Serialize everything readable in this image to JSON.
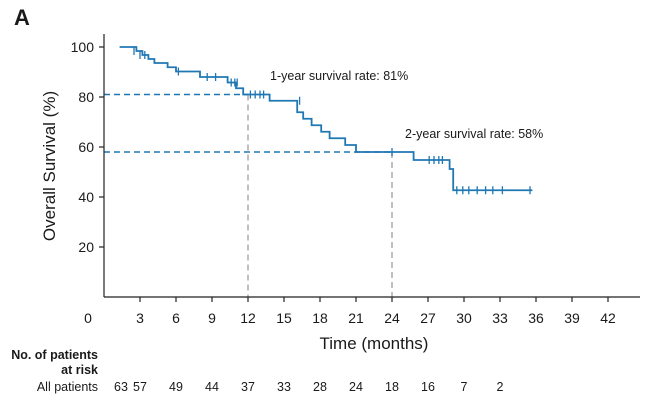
{
  "panel_label": "A",
  "risk_table": {
    "heading_line1": "No. of patients",
    "heading_line2": "at risk",
    "row_label": "All patients",
    "counts": [
      "63",
      "57",
      "49",
      "44",
      "37",
      "33",
      "28",
      "24",
      "18",
      "16",
      "7",
      "2"
    ]
  },
  "colors": {
    "curve": "#1f77b4",
    "reference_blue": "#1f77b4",
    "reference_gray": "#a6a6a6",
    "axis": "#222222"
  },
  "chart_data": {
    "type": "line",
    "title": "",
    "xlabel": "Time (months)",
    "ylabel": "Overall Survival (%)",
    "xlim": [
      0,
      43
    ],
    "ylim": [
      0,
      103
    ],
    "x_ticks": [
      0,
      3,
      6,
      9,
      12,
      15,
      18,
      21,
      24,
      27,
      30,
      33,
      36,
      39,
      42
    ],
    "x_tick_labels": [
      "0",
      "3",
      "6",
      "9",
      "12",
      "15",
      "18",
      "21",
      "24",
      "27",
      "30",
      "33",
      "36",
      "39",
      "42"
    ],
    "y_ticks": [
      20,
      40,
      60,
      80,
      100
    ],
    "y_tick_labels": [
      "20",
      "40",
      "60",
      "80",
      "100"
    ],
    "grid": false,
    "series": [
      {
        "style": "step",
        "x": [
          1.3,
          2.7,
          3.2,
          3.7,
          4.2,
          5.3,
          6.0,
          8.0,
          10.3,
          11.0,
          11.6,
          13.8,
          16.1,
          16.6,
          17.3,
          18.1,
          18.8,
          20.1,
          21.0,
          22.1,
          23.1,
          24.3,
          25.8,
          28.8,
          29.1,
          35.7
        ],
        "y": [
          100,
          98.4,
          96.8,
          95.2,
          93.6,
          91.9,
          90.2,
          88.0,
          85.8,
          83.5,
          81.0,
          78.5,
          73.9,
          71.3,
          68.7,
          66.1,
          63.5,
          60.8,
          58.0,
          58.0,
          58.0,
          58.0,
          54.8,
          51.2,
          42.7,
          42.7
        ]
      }
    ],
    "censor_marks": {
      "x": [
        2.5,
        3.0,
        3.4,
        6.2,
        8.6,
        9.3,
        10.6,
        10.9,
        11.1,
        12.2,
        12.6,
        13.0,
        13.3,
        16.3,
        24.0,
        27.1,
        27.5,
        27.9,
        28.2,
        29.4,
        29.9,
        30.4,
        31.1,
        31.8,
        32.4,
        33.2,
        35.5
      ],
      "y": [
        98.4,
        96.8,
        96.8,
        90.2,
        88.0,
        88.0,
        85.8,
        85.8,
        85.8,
        81.0,
        81.0,
        81.0,
        81.0,
        78.5,
        58.0,
        54.8,
        54.8,
        54.8,
        54.8,
        42.7,
        42.7,
        42.7,
        42.7,
        42.7,
        42.7,
        42.7,
        42.7
      ]
    },
    "reference_lines": [
      {
        "time": 12,
        "survival": 81,
        "label": "1-year survival rate: 81%"
      },
      {
        "time": 24,
        "survival": 58,
        "label": "2-year survival rate: 58%"
      }
    ]
  }
}
